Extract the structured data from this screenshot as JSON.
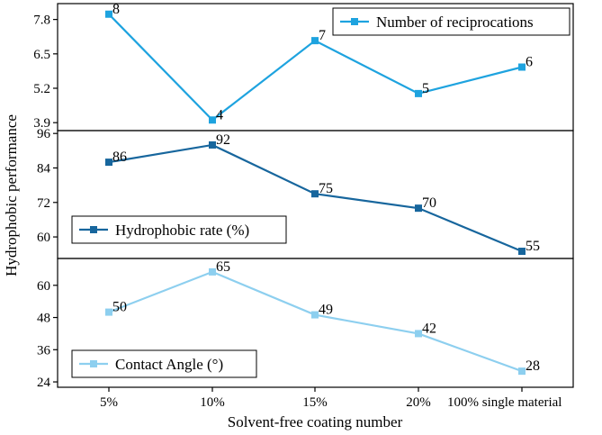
{
  "chart_data": {
    "type": "line",
    "ylabel": "Hydrophobic performance",
    "xlabel": "Solvent-free coating number",
    "categories": [
      "5%",
      "10%",
      "15%",
      "20%",
      "100% single material"
    ],
    "panels": [
      {
        "legend": "Number of reciprocations",
        "legend_position": "top-right",
        "color": "#1ea3df",
        "values": [
          8,
          4,
          7,
          5,
          6
        ],
        "labels": [
          "8",
          "4",
          "7",
          "5",
          "6"
        ],
        "ylim": [
          3.6,
          8.4
        ],
        "yticks": [
          "3.9",
          "5.2",
          "6.5",
          "7.8"
        ]
      },
      {
        "legend": "Hydrophobic rate (%)",
        "legend_position": "bottom-left",
        "color": "#17669d",
        "values": [
          86,
          92,
          75,
          70,
          55
        ],
        "labels": [
          "86",
          "92",
          "75",
          "70",
          "55"
        ],
        "ylim": [
          52.5,
          97
        ],
        "yticks": [
          "60",
          "72",
          "84",
          "96"
        ]
      },
      {
        "legend": "Contact Angle (°)",
        "legend_position": "bottom-left",
        "color": "#8dcfef",
        "values": [
          50,
          65,
          49,
          42,
          28
        ],
        "labels": [
          "50",
          "65",
          "49",
          "42",
          "28"
        ],
        "ylim": [
          22,
          70
        ],
        "yticks": [
          "24",
          "36",
          "48",
          "60"
        ]
      }
    ]
  }
}
